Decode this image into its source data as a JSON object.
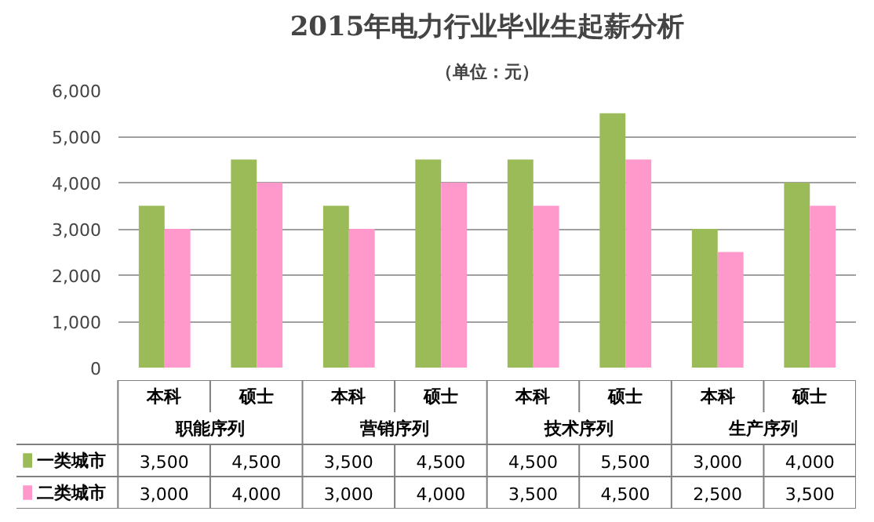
{
  "chart_data": {
    "type": "bar",
    "title": "2015年电力行业毕业生起薪分析",
    "subtitle": "（单位：元）",
    "categories": [
      "本科",
      "硕士",
      "本科",
      "硕士",
      "本科",
      "硕士",
      "本科",
      "硕士"
    ],
    "annotations": [
      "职能序列",
      "营销序列",
      "技术序列",
      "生产序列"
    ],
    "series": [
      {
        "name": "一类城市",
        "color": "#9bbb59",
        "values": [
          3500,
          4500,
          3500,
          4500,
          4500,
          5500,
          3000,
          4000
        ],
        "value_labels": [
          "3,500",
          "4,500",
          "3,500",
          "4,500",
          "4,500",
          "5,500",
          "3,000",
          "4,000"
        ]
      },
      {
        "name": "二类城市",
        "color": "#ff99cc",
        "values": [
          3000,
          4000,
          3000,
          4000,
          3500,
          4500,
          2500,
          3500
        ],
        "value_labels": [
          "3,000",
          "4,000",
          "3,000",
          "4,000",
          "3,500",
          "4,500",
          "2,500",
          "3,500"
        ]
      }
    ],
    "ylim": [
      0,
      6000
    ],
    "yticks": [
      {
        "value": 0,
        "label": "0"
      },
      {
        "value": 1000,
        "label": "1,000"
      },
      {
        "value": 2000,
        "label": "2,000"
      },
      {
        "value": 3000,
        "label": "3,000"
      },
      {
        "value": 4000,
        "label": "4,000"
      },
      {
        "value": 5000,
        "label": "5,000"
      },
      {
        "value": 6000,
        "label": "6,000"
      }
    ],
    "grid": "y",
    "legend": "bottom left"
  }
}
